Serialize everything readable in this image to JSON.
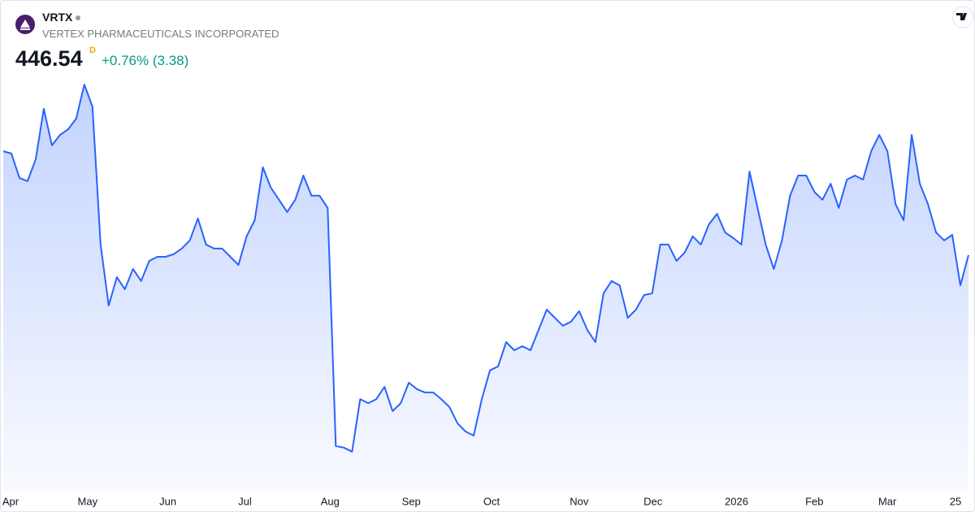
{
  "header": {
    "symbol": "VRTX",
    "name": "VERTEX PHARMACEUTICALS INCORPORATED",
    "price": "446.54",
    "interval": "D",
    "change": "+0.76% (3.38)"
  },
  "chart_data": {
    "type": "area",
    "color": "#2962ff",
    "values": [
      487.2,
      486.3,
      476.7,
      475.5,
      484.0,
      503.8,
      489.5,
      493.6,
      495.8,
      500.0,
      513.3,
      504.7,
      450.7,
      426.8,
      437.9,
      433.2,
      441.1,
      436.4,
      444.3,
      445.9,
      445.9,
      446.9,
      449.1,
      452.3,
      460.9,
      450.7,
      449.1,
      449.1,
      445.9,
      442.7,
      453.9,
      460.2,
      480.9,
      472.9,
      468.2,
      463.4,
      468.2,
      477.7,
      469.8,
      469.8,
      465.0,
      371.8,
      371.2,
      369.6,
      390.2,
      388.6,
      390.2,
      395.0,
      385.5,
      388.6,
      396.6,
      394.1,
      392.8,
      392.8,
      390.2,
      387.1,
      380.7,
      377.5,
      375.9,
      390.2,
      401.4,
      403.0,
      412.5,
      409.3,
      410.9,
      409.3,
      417.3,
      425.2,
      422.0,
      418.9,
      420.5,
      424.6,
      417.3,
      412.5,
      431.6,
      436.4,
      434.7,
      422.0,
      425.2,
      430.9,
      431.6,
      450.7,
      450.7,
      444.3,
      447.5,
      453.9,
      450.7,
      458.6,
      462.7,
      455.4,
      453.2,
      450.7,
      479.3,
      465.0,
      450.7,
      441.1,
      452.3,
      469.8,
      477.7,
      477.7,
      471.3,
      468.2,
      474.5,
      465.0,
      476.1,
      477.7,
      476.1,
      487.2,
      493.6,
      487.2,
      466.5,
      460.2,
      493.6,
      474.5,
      466.5,
      455.4,
      452.3,
      454.5,
      434.7,
      446.54
    ],
    "ylim": [
      360,
      520
    ],
    "xticks": [
      {
        "value": 0.9,
        "label": "Apr"
      },
      {
        "value": 10.4,
        "label": "May"
      },
      {
        "value": 20.3,
        "label": "Jun"
      },
      {
        "value": 29.8,
        "label": "Jul"
      },
      {
        "value": 40.3,
        "label": "Aug"
      },
      {
        "value": 50.3,
        "label": "Sep"
      },
      {
        "value": 60.2,
        "label": "Oct"
      },
      {
        "value": 71.0,
        "label": "Nov"
      },
      {
        "value": 80.1,
        "label": "Dec"
      },
      {
        "value": 90.4,
        "label": "2026"
      },
      {
        "value": 100.0,
        "label": "Feb"
      },
      {
        "value": 109.0,
        "label": "Mar"
      },
      {
        "value": 117.4,
        "label": "25"
      }
    ]
  }
}
